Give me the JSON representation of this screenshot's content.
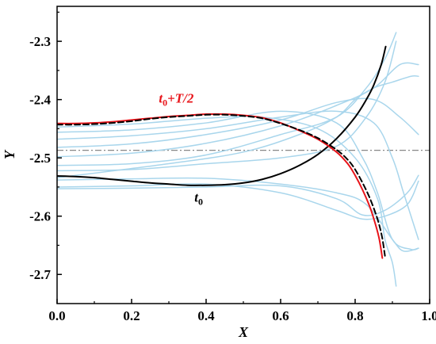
{
  "chart_data": {
    "type": "line",
    "title": "",
    "xlabel": "X",
    "ylabel": "Y",
    "xlim": [
      0.0,
      1.0
    ],
    "ylim": [
      -2.75,
      -2.24
    ],
    "x_ticks": [
      "0.0",
      "0.2",
      "0.4",
      "0.6",
      "0.8",
      "1.0"
    ],
    "y_ticks": [
      "-2.7",
      "-2.6",
      "-2.5",
      "-2.4",
      "-2.3"
    ],
    "x_tick_values": [
      0.0,
      0.2,
      0.4,
      0.6,
      0.8,
      1.0
    ],
    "y_tick_values": [
      -2.7,
      -2.6,
      -2.5,
      -2.4,
      -2.3
    ],
    "grid": false,
    "legend": "none",
    "reference_line": {
      "y": -2.487,
      "style": "dash-dot",
      "color": "#888888"
    },
    "annotations": [
      {
        "label_main": "t",
        "label_sub": "0",
        "label_rest": "+T/2",
        "color": "#e8141a",
        "x": 0.32,
        "y": -2.405
      },
      {
        "label_main": "t",
        "label_sub": "0",
        "label_rest": "",
        "color": "#000000",
        "x": 0.38,
        "y": -2.575
      }
    ],
    "series": [
      {
        "style": "black-solid",
        "color": "#000000",
        "points": [
          [
            0.0,
            -2.531
          ],
          [
            0.05,
            -2.532
          ],
          [
            0.1,
            -2.534
          ],
          [
            0.15,
            -2.537
          ],
          [
            0.2,
            -2.54
          ],
          [
            0.25,
            -2.543
          ],
          [
            0.3,
            -2.545
          ],
          [
            0.35,
            -2.547
          ],
          [
            0.4,
            -2.547
          ],
          [
            0.45,
            -2.546
          ],
          [
            0.5,
            -2.543
          ],
          [
            0.55,
            -2.537
          ],
          [
            0.6,
            -2.527
          ],
          [
            0.65,
            -2.513
          ],
          [
            0.7,
            -2.494
          ],
          [
            0.75,
            -2.467
          ],
          [
            0.8,
            -2.43
          ],
          [
            0.83,
            -2.4
          ],
          [
            0.85,
            -2.375
          ],
          [
            0.87,
            -2.34
          ],
          [
            0.882,
            -2.309
          ]
        ]
      },
      {
        "style": "red-solid",
        "color": "#e8141a",
        "points": [
          [
            0.0,
            -2.441
          ],
          [
            0.05,
            -2.441
          ],
          [
            0.1,
            -2.44
          ],
          [
            0.15,
            -2.438
          ],
          [
            0.2,
            -2.435
          ],
          [
            0.25,
            -2.432
          ],
          [
            0.3,
            -2.429
          ],
          [
            0.35,
            -2.427
          ],
          [
            0.4,
            -2.425
          ],
          [
            0.45,
            -2.425
          ],
          [
            0.5,
            -2.427
          ],
          [
            0.55,
            -2.431
          ],
          [
            0.6,
            -2.44
          ],
          [
            0.65,
            -2.453
          ],
          [
            0.7,
            -2.468
          ],
          [
            0.75,
            -2.49
          ],
          [
            0.78,
            -2.51
          ],
          [
            0.8,
            -2.53
          ],
          [
            0.82,
            -2.555
          ],
          [
            0.84,
            -2.585
          ],
          [
            0.855,
            -2.615
          ],
          [
            0.865,
            -2.64
          ],
          [
            0.873,
            -2.672
          ]
        ]
      },
      {
        "style": "black-dashed",
        "color": "#000000",
        "points": [
          [
            0.0,
            -2.443
          ],
          [
            0.05,
            -2.443
          ],
          [
            0.1,
            -2.442
          ],
          [
            0.15,
            -2.44
          ],
          [
            0.2,
            -2.437
          ],
          [
            0.25,
            -2.433
          ],
          [
            0.3,
            -2.43
          ],
          [
            0.35,
            -2.428
          ],
          [
            0.4,
            -2.426
          ],
          [
            0.45,
            -2.426
          ],
          [
            0.5,
            -2.428
          ],
          [
            0.55,
            -2.432
          ],
          [
            0.6,
            -2.441
          ],
          [
            0.65,
            -2.452
          ],
          [
            0.7,
            -2.466
          ],
          [
            0.75,
            -2.486
          ],
          [
            0.78,
            -2.503
          ],
          [
            0.8,
            -2.52
          ],
          [
            0.82,
            -2.543
          ],
          [
            0.84,
            -2.57
          ],
          [
            0.86,
            -2.605
          ],
          [
            0.872,
            -2.635
          ],
          [
            0.88,
            -2.668
          ]
        ]
      },
      {
        "style": "light-blue",
        "color": "#a9d6ec",
        "points": [
          [
            0.0,
            -2.447
          ],
          [
            0.2,
            -2.442
          ],
          [
            0.4,
            -2.432
          ],
          [
            0.55,
            -2.43
          ],
          [
            0.7,
            -2.45
          ],
          [
            0.8,
            -2.5
          ],
          [
            0.86,
            -2.57
          ],
          [
            0.88,
            -2.64
          ],
          [
            0.9,
            -2.68
          ],
          [
            0.91,
            -2.72
          ]
        ]
      },
      {
        "style": "light-blue",
        "color": "#a9d6ec",
        "points": [
          [
            0.0,
            -2.456
          ],
          [
            0.2,
            -2.452
          ],
          [
            0.4,
            -2.44
          ],
          [
            0.6,
            -2.42
          ],
          [
            0.75,
            -2.44
          ],
          [
            0.82,
            -2.5
          ],
          [
            0.86,
            -2.56
          ],
          [
            0.9,
            -2.64
          ],
          [
            0.95,
            -2.657
          ],
          [
            0.97,
            -2.655
          ]
        ]
      },
      {
        "style": "light-blue",
        "color": "#a9d6ec",
        "points": [
          [
            0.0,
            -2.468
          ],
          [
            0.2,
            -2.462
          ],
          [
            0.4,
            -2.45
          ],
          [
            0.6,
            -2.43
          ],
          [
            0.75,
            -2.42
          ],
          [
            0.85,
            -2.44
          ],
          [
            0.9,
            -2.5
          ],
          [
            0.93,
            -2.56
          ],
          [
            0.97,
            -2.64
          ]
        ]
      },
      {
        "style": "light-blue",
        "color": "#a9d6ec",
        "points": [
          [
            0.0,
            -2.482
          ],
          [
            0.2,
            -2.476
          ],
          [
            0.4,
            -2.46
          ],
          [
            0.6,
            -2.435
          ],
          [
            0.75,
            -2.405
          ],
          [
            0.85,
            -2.4
          ],
          [
            0.92,
            -2.43
          ],
          [
            0.97,
            -2.46
          ]
        ]
      },
      {
        "style": "light-blue",
        "color": "#a9d6ec",
        "points": [
          [
            0.0,
            -2.498
          ],
          [
            0.2,
            -2.492
          ],
          [
            0.4,
            -2.475
          ],
          [
            0.6,
            -2.445
          ],
          [
            0.75,
            -2.41
          ],
          [
            0.85,
            -2.38
          ],
          [
            0.92,
            -2.34
          ],
          [
            0.97,
            -2.34
          ]
        ]
      },
      {
        "style": "light-blue",
        "color": "#a9d6ec",
        "points": [
          [
            0.0,
            -2.513
          ],
          [
            0.2,
            -2.51
          ],
          [
            0.4,
            -2.495
          ],
          [
            0.6,
            -2.46
          ],
          [
            0.75,
            -2.43
          ],
          [
            0.83,
            -2.38
          ],
          [
            0.88,
            -2.33
          ],
          [
            0.91,
            -2.285
          ]
        ]
      },
      {
        "style": "light-blue",
        "color": "#a9d6ec",
        "points": [
          [
            0.0,
            -2.522
          ],
          [
            0.2,
            -2.52
          ],
          [
            0.4,
            -2.51
          ],
          [
            0.6,
            -2.5
          ],
          [
            0.75,
            -2.48
          ],
          [
            0.83,
            -2.43
          ],
          [
            0.88,
            -2.37
          ],
          [
            0.91,
            -2.3
          ]
        ]
      },
      {
        "style": "light-blue",
        "color": "#a9d6ec",
        "points": [
          [
            0.0,
            -2.538
          ],
          [
            0.2,
            -2.536
          ],
          [
            0.4,
            -2.535
          ],
          [
            0.6,
            -2.545
          ],
          [
            0.75,
            -2.56
          ],
          [
            0.83,
            -2.58
          ],
          [
            0.9,
            -2.64
          ],
          [
            0.93,
            -2.66
          ],
          [
            0.97,
            -2.655
          ]
        ]
      },
      {
        "style": "light-blue",
        "color": "#a9d6ec",
        "points": [
          [
            0.0,
            -2.55
          ],
          [
            0.2,
            -2.548
          ],
          [
            0.4,
            -2.545
          ],
          [
            0.6,
            -2.56
          ],
          [
            0.75,
            -2.59
          ],
          [
            0.82,
            -2.605
          ],
          [
            0.88,
            -2.6
          ],
          [
            0.94,
            -2.58
          ],
          [
            0.97,
            -2.54
          ]
        ]
      },
      {
        "style": "light-blue",
        "color": "#a9d6ec",
        "points": [
          [
            0.0,
            -2.553
          ],
          [
            0.2,
            -2.552
          ],
          [
            0.4,
            -2.55
          ],
          [
            0.6,
            -2.548
          ],
          [
            0.75,
            -2.57
          ],
          [
            0.82,
            -2.598
          ],
          [
            0.88,
            -2.59
          ],
          [
            0.94,
            -2.56
          ],
          [
            0.97,
            -2.53
          ]
        ]
      },
      {
        "style": "light-blue",
        "color": "#a9d6ec",
        "points": [
          [
            0.0,
            -2.534
          ],
          [
            0.3,
            -2.51
          ],
          [
            0.5,
            -2.49
          ],
          [
            0.65,
            -2.46
          ],
          [
            0.75,
            -2.43
          ],
          [
            0.8,
            -2.4
          ],
          [
            0.85,
            -2.38
          ],
          [
            0.9,
            -2.37
          ],
          [
            0.95,
            -2.36
          ],
          [
            0.97,
            -2.36
          ]
        ]
      }
    ]
  }
}
